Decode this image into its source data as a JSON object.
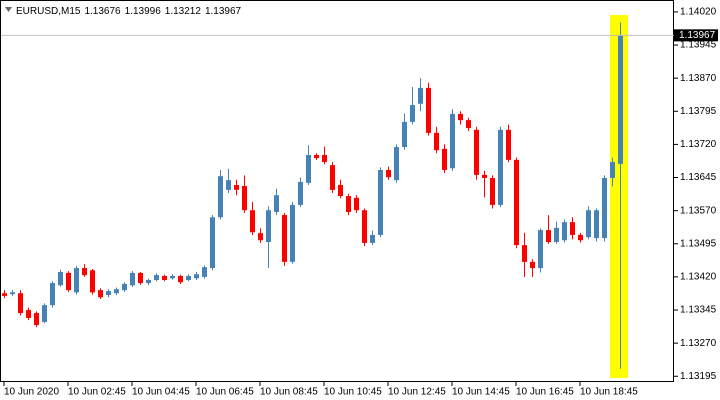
{
  "chart_data": {
    "type": "candlestick",
    "title": "EURUSD,M15",
    "categories": [
      "10 Jun 2020",
      null,
      null,
      null,
      null,
      null,
      null,
      null,
      "10 Jun 02:45",
      null,
      null,
      null,
      null,
      null,
      null,
      null,
      "10 Jun 04:45",
      null,
      null,
      null,
      null,
      null,
      null,
      null,
      "10 Jun 06:45",
      null,
      null,
      null,
      null,
      null,
      null,
      null,
      "10 Jun 08:45",
      null,
      null,
      null,
      null,
      null,
      null,
      null,
      "10 Jun 10:45",
      null,
      null,
      null,
      null,
      null,
      null,
      null,
      "10 Jun 12:45",
      null,
      null,
      null,
      null,
      null,
      null,
      null,
      "10 Jun 14:45",
      null,
      null,
      null,
      null,
      null,
      null,
      null,
      "10 Jun 16:45",
      null,
      null,
      null,
      null,
      null,
      null,
      null,
      "10 Jun 18:45",
      null,
      null,
      null,
      null,
      null
    ],
    "open": [
      1.13383,
      1.13381,
      1.13383,
      1.13345,
      1.13338,
      1.13318,
      1.13356,
      1.13401,
      1.13429,
      1.13385,
      1.1344,
      1.13435,
      1.1339,
      1.13379,
      1.13383,
      1.1339,
      1.13401,
      1.13429,
      1.13406,
      1.13413,
      1.13422,
      1.13417,
      1.13422,
      1.13413,
      1.13417,
      1.1342,
      1.1344,
      1.13555,
      1.13617,
      1.13628,
      1.13626,
      1.13571,
      1.13519,
      1.13499,
      1.13567,
      1.1356,
      1.13454,
      1.13583,
      1.13633,
      1.13696,
      1.13696,
      1.13673,
      1.13628,
      1.13603,
      1.13599,
      1.13571,
      1.13497,
      1.13515,
      1.13662,
      1.13639,
      1.13714,
      1.13771,
      1.13812,
      1.13848,
      1.13746,
      1.1371,
      1.13666,
      1.13789,
      1.13775,
      1.13753,
      1.13651,
      1.13644,
      1.13583,
      1.13753,
      1.13685,
      1.13492,
      1.13454,
      1.1344,
      1.13526,
      1.13499,
      1.13503,
      1.13544,
      1.13515,
      1.1351,
      1.13508,
      1.13508,
      1.13644,
      1.13676
    ],
    "high": [
      1.1339,
      1.1339,
      1.1339,
      1.1335,
      1.13342,
      1.1336,
      1.1341,
      1.13436,
      1.13433,
      1.13445,
      1.13449,
      1.13438,
      1.13394,
      1.13392,
      1.13396,
      1.13408,
      1.13433,
      1.13431,
      1.13416,
      1.13428,
      1.13425,
      1.13426,
      1.13425,
      1.13426,
      1.13431,
      1.13446,
      1.1356,
      1.13662,
      1.13665,
      1.1364,
      1.1365,
      1.1359,
      1.1353,
      1.1358,
      1.1362,
      1.13565,
      1.1359,
      1.13645,
      1.13718,
      1.137,
      1.13715,
      1.1368,
      1.1364,
      1.13608,
      1.13605,
      1.13575,
      1.13525,
      1.13668,
      1.1367,
      1.1372,
      1.1379,
      1.1385,
      1.1387,
      1.1386,
      1.1376,
      1.1372,
      1.138,
      1.13795,
      1.1378,
      1.1376,
      1.1366,
      1.1365,
      1.1376,
      1.13765,
      1.1369,
      1.1352,
      1.1346,
      1.1353,
      1.1356,
      1.13545,
      1.1355,
      1.13555,
      1.1352,
      1.1358,
      1.13575,
      1.1365,
      1.1369,
      1.13996
    ],
    "low": [
      1.13372,
      1.13377,
      1.13333,
      1.13322,
      1.13306,
      1.13315,
      1.1335,
      1.13398,
      1.13386,
      1.1338,
      1.1342,
      1.1338,
      1.1337,
      1.13374,
      1.13379,
      1.13386,
      1.13397,
      1.13402,
      1.13401,
      1.1341,
      1.1341,
      1.13414,
      1.13404,
      1.1341,
      1.13413,
      1.13416,
      1.13435,
      1.1355,
      1.1361,
      1.13605,
      1.13565,
      1.13515,
      1.13497,
      1.1344,
      1.1356,
      1.13445,
      1.1345,
      1.13578,
      1.13628,
      1.13685,
      1.13675,
      1.1361,
      1.13598,
      1.1356,
      1.13565,
      1.1349,
      1.13492,
      1.1351,
      1.1364,
      1.13633,
      1.13708,
      1.13765,
      1.13795,
      1.1374,
      1.137,
      1.13655,
      1.1366,
      1.13765,
      1.1375,
      1.1364,
      1.136,
      1.13575,
      1.13578,
      1.1368,
      1.13485,
      1.1342,
      1.1342,
      1.1343,
      1.13495,
      1.13495,
      1.13498,
      1.13505,
      1.13498,
      1.13505,
      1.135,
      1.135,
      1.13625,
      1.13212
    ],
    "close": [
      1.13377,
      1.13385,
      1.13338,
      1.13327,
      1.13311,
      1.13356,
      1.13406,
      1.13431,
      1.1339,
      1.1344,
      1.13424,
      1.13385,
      1.13374,
      1.13388,
      1.13392,
      1.13404,
      1.13429,
      1.13406,
      1.13413,
      1.13424,
      1.13413,
      1.13422,
      1.13408,
      1.13422,
      1.13426,
      1.13442,
      1.13555,
      1.13648,
      1.13639,
      1.13617,
      1.13571,
      1.13521,
      1.13503,
      1.13571,
      1.13605,
      1.13454,
      1.13583,
      1.13635,
      1.13696,
      1.13689,
      1.1368,
      1.13617,
      1.13603,
      1.13567,
      1.13571,
      1.13497,
      1.13515,
      1.13662,
      1.13646,
      1.13714,
      1.13771,
      1.13809,
      1.13848,
      1.13746,
      1.13707,
      1.13662,
      1.13789,
      1.13775,
      1.13757,
      1.13651,
      1.13644,
      1.13583,
      1.13753,
      1.13685,
      1.13492,
      1.13454,
      1.1344,
      1.13526,
      1.13499,
      1.13531,
      1.13544,
      1.13515,
      1.13503,
      1.13571,
      1.13571,
      1.13644,
      1.1368,
      1.13967
    ],
    "up_color": "#4682b4",
    "down_color": "#ff0000",
    "ylim": [
      1.13182,
      1.14047
    ],
    "yticks": [
      {
        "value": 1.1402,
        "label": "1.14020"
      },
      1.13945,
      {
        "value": 1.1387,
        "label": "1.13870"
      },
      1.13795,
      {
        "value": 1.1372,
        "label": "1.13720"
      },
      1.13645,
      {
        "value": 1.1357,
        "label": "1.13570"
      },
      1.13495,
      {
        "value": 1.1342,
        "label": "1.13420"
      },
      1.13345,
      {
        "value": 1.1327,
        "label": "1.13270"
      },
      1.13195
    ]
  }
}
